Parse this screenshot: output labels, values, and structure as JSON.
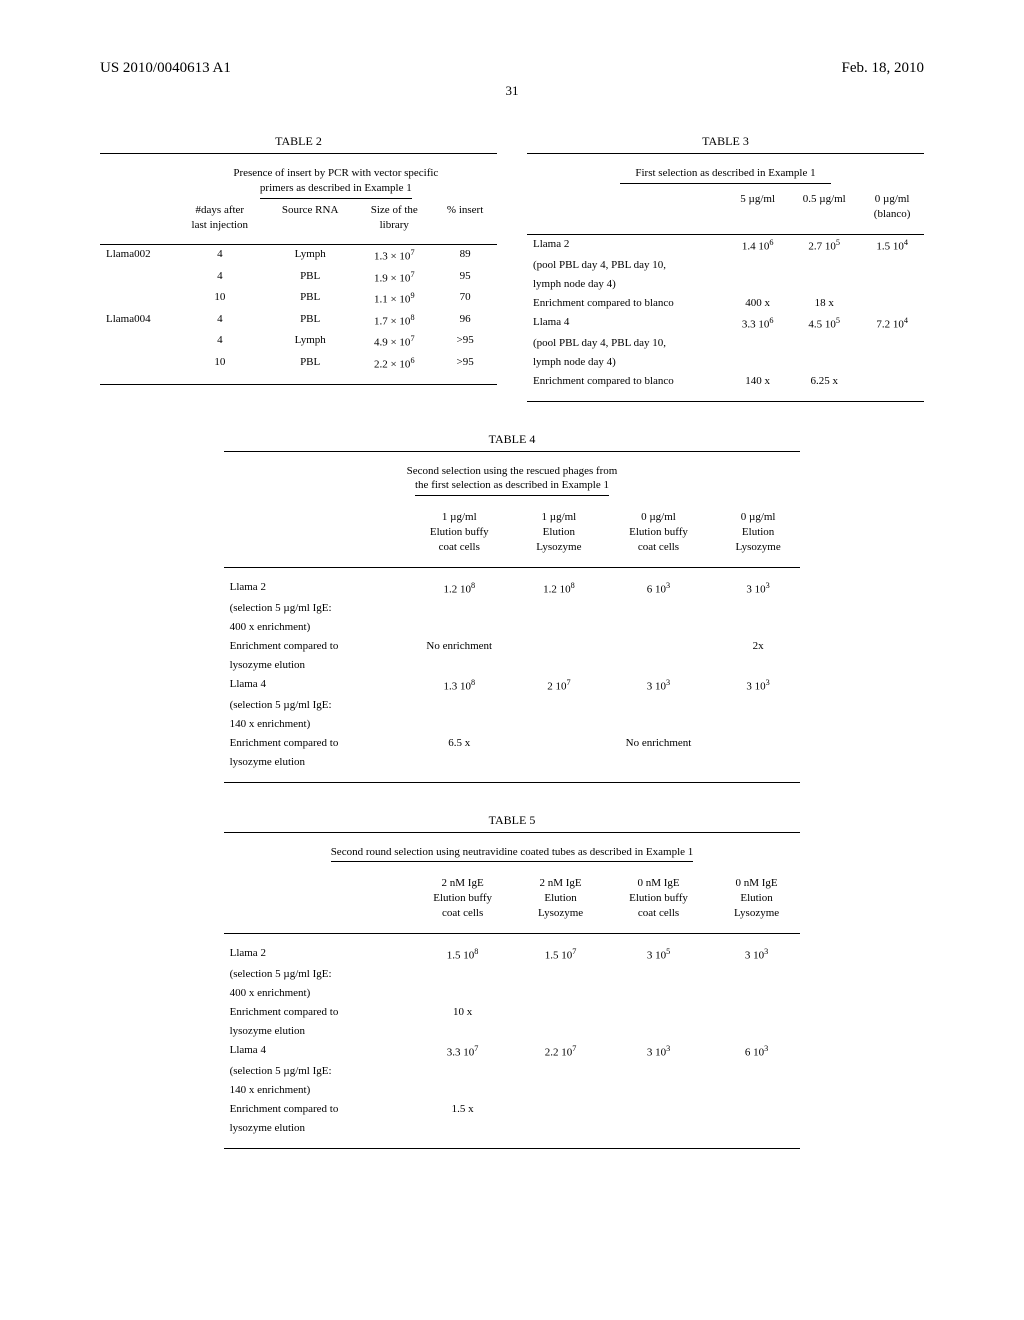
{
  "header": {
    "left": "US 2010/0040613 A1",
    "right": "Feb. 18, 2010",
    "page_number": "31"
  },
  "table2": {
    "title": "TABLE 2",
    "caption_line1": "Presence of insert by PCR with vector specific",
    "caption_line2": "primers as described in Example 1",
    "columns": {
      "col1_l1": "#days after",
      "col1_l2": "last injection",
      "col2": "Source RNA",
      "col3_l1": "Size of the",
      "col3_l2": "library",
      "col4": "% insert"
    },
    "row_labels": {
      "llama002": "Llama002",
      "llama004": "Llama004"
    },
    "rows": [
      {
        "llama": "Llama002",
        "days": "4",
        "src": "Lymph",
        "size": "1.3 × 10⁷",
        "ins": "89"
      },
      {
        "llama": "",
        "days": "4",
        "src": "PBL",
        "size": "1.9 × 10⁷",
        "ins": "95"
      },
      {
        "llama": "",
        "days": "10",
        "src": "PBL",
        "size": "1.1 × 10⁹",
        "ins": "70"
      },
      {
        "llama": "Llama004",
        "days": "4",
        "src": "PBL",
        "size": "1.7 × 10⁸",
        "ins": "96"
      },
      {
        "llama": "",
        "days": "4",
        "src": "Lymph",
        "size": "4.9 × 10⁷",
        "ins": ">95"
      },
      {
        "llama": "",
        "days": "10",
        "src": "PBL",
        "size": "2.2 × 10⁶",
        "ins": ">95"
      }
    ]
  },
  "table3": {
    "title": "TABLE 3",
    "caption": "First selection as described in Example 1",
    "columns": {
      "c1": "5 µg/ml",
      "c2": "0.5 µg/ml",
      "c3_l1": "0 µg/ml",
      "c3_l2": "(blanco)"
    },
    "rows": [
      {
        "label": "Llama 2",
        "c1": "1.4 10⁶",
        "c2": "2.7 10⁵",
        "c3": "1.5 10⁴"
      },
      {
        "label": "(pool PBL day 4, PBL day 10,",
        "c1": "",
        "c2": "",
        "c3": ""
      },
      {
        "label": "lymph node day 4)",
        "c1": "",
        "c2": "",
        "c3": ""
      },
      {
        "label": "Enrichment compared to blanco",
        "c1": "400 x",
        "c2": "18 x",
        "c3": ""
      },
      {
        "label": "Llama 4",
        "c1": "3.3 10⁶",
        "c2": "4.5 10⁵",
        "c3": "7.2 10⁴"
      },
      {
        "label": "(pool PBL day 4, PBL day 10,",
        "c1": "",
        "c2": "",
        "c3": ""
      },
      {
        "label": "lymph node day 4)",
        "c1": "",
        "c2": "",
        "c3": ""
      },
      {
        "label": "Enrichment compared to blanco",
        "c1": "140 x",
        "c2": "6.25 x",
        "c3": ""
      }
    ]
  },
  "table4": {
    "title": "TABLE 4",
    "caption_l1": "Second selection using the rescued phages from",
    "caption_l2": "the first selection as described in Example 1",
    "columns": {
      "c1_l1": "1 µg/ml",
      "c1_l2": "Elution buffy",
      "c1_l3": "coat cells",
      "c2_l1": "1 µg/ml",
      "c2_l2": "Elution",
      "c2_l3": "Lysozyme",
      "c3_l1": "0 µg/ml",
      "c3_l2": "Elution buffy",
      "c3_l3": "coat cells",
      "c4_l1": "0 µg/ml",
      "c4_l2": "Elution",
      "c4_l3": "Lysozyme"
    },
    "rows": [
      {
        "label": "Llama 2",
        "c1": "1.2 10⁸",
        "c2": "1.2 10⁸",
        "c3": "6 10³",
        "c4": "3 10³"
      },
      {
        "label": "(selection 5 µg/ml IgE:",
        "c1": "",
        "c2": "",
        "c3": "",
        "c4": ""
      },
      {
        "label": "400 x enrichment)",
        "c1": "",
        "c2": "",
        "c3": "",
        "c4": ""
      },
      {
        "label": "Enrichment compared to",
        "c1": "No enrichment",
        "c2": "",
        "c3": "",
        "c4": "2x"
      },
      {
        "label": "lysozyme elution",
        "c1": "",
        "c2": "",
        "c3": "",
        "c4": ""
      },
      {
        "label": "Llama 4",
        "c1": "1.3 10⁸",
        "c2": "2 10⁷",
        "c3": "3 10³",
        "c4": "3 10³"
      },
      {
        "label": "(selection 5 µg/ml IgE:",
        "c1": "",
        "c2": "",
        "c3": "",
        "c4": ""
      },
      {
        "label": "140 x enrichment)",
        "c1": "",
        "c2": "",
        "c3": "",
        "c4": ""
      },
      {
        "label": "Enrichment compared to",
        "c1": "6.5 x",
        "c2": "",
        "c3": "No enrichment",
        "c4": ""
      },
      {
        "label": "lysozyme elution",
        "c1": "",
        "c2": "",
        "c3": "",
        "c4": ""
      }
    ]
  },
  "table5": {
    "title": "TABLE 5",
    "caption": "Second round selection using neutravidine coated tubes as described in Example 1",
    "columns": {
      "c1_l1": "2 nM IgE",
      "c1_l2": "Elution buffy",
      "c1_l3": "coat cells",
      "c2_l1": "2 nM IgE",
      "c2_l2": "Elution",
      "c2_l3": "Lysozyme",
      "c3_l1": "0 nM IgE",
      "c3_l2": "Elution buffy",
      "c3_l3": "coat cells",
      "c4_l1": "0 nM IgE",
      "c4_l2": "Elution",
      "c4_l3": "Lysozyme"
    },
    "rows": [
      {
        "label": "Llama 2",
        "c1": "1.5 10⁸",
        "c2": "1.5 10⁷",
        "c3": "3 10⁵",
        "c4": "3 10³"
      },
      {
        "label": "(selection 5 µg/ml IgE:",
        "c1": "",
        "c2": "",
        "c3": "",
        "c4": ""
      },
      {
        "label": "400 x enrichment)",
        "c1": "",
        "c2": "",
        "c3": "",
        "c4": ""
      },
      {
        "label": "Enrichment compared to",
        "c1": "10 x",
        "c2": "",
        "c3": "",
        "c4": ""
      },
      {
        "label": "lysozyme elution",
        "c1": "",
        "c2": "",
        "c3": "",
        "c4": ""
      },
      {
        "label": "Llama 4",
        "c1": "3.3 10⁷",
        "c2": "2.2 10⁷",
        "c3": "3 10³",
        "c4": "6 10³"
      },
      {
        "label": "(selection 5 µg/ml IgE:",
        "c1": "",
        "c2": "",
        "c3": "",
        "c4": ""
      },
      {
        "label": "140 x enrichment)",
        "c1": "",
        "c2": "",
        "c3": "",
        "c4": ""
      },
      {
        "label": "Enrichment compared to",
        "c1": "1.5 x",
        "c2": "",
        "c3": "",
        "c4": ""
      },
      {
        "label": "lysozyme elution",
        "c1": "",
        "c2": "",
        "c3": "",
        "c4": ""
      }
    ]
  }
}
